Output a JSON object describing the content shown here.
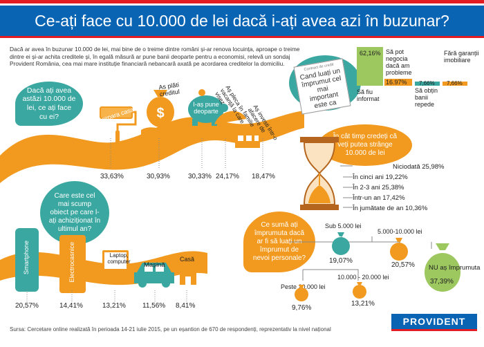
{
  "header": {
    "title": "Ce-ați face cu 10.000 de lei dacă i-ați avea azi în buzunar?"
  },
  "intro": "Dacă ar avea în buzunar 10.000 de lei, mai bine de o treime dintre români și-ar renova locuința, aproape o treime dintre ei și-ar achita creditele și, în egală măsură ar pune banii deoparte pentru a economisi, relevă un sondaj Provident România, cea mai mare instituție financiară nebancară axată pe acordarea creditelor la domiciliu.",
  "section1": {
    "question": "Dacă ați avea astăzi 10.000 de lei, ce ați face cu ei?",
    "options": [
      {
        "label": "Aș repara casa",
        "value": "33,63%"
      },
      {
        "label": "As plăti creditul",
        "value": "30,93%"
      },
      {
        "label": "I-aș pune deoparte",
        "value": "30,33%"
      },
      {
        "label": "Aș pleca în vacanță la care visez",
        "value": "24,17%"
      },
      {
        "label": "Aș investi într-o afacere de familie",
        "value": "18,47%"
      }
    ]
  },
  "section2": {
    "paper_header": "Contract de credit",
    "question": "Cand luați un împrumut cel mai important este ca",
    "bars": [
      {
        "label": "Să fiu informat",
        "value": "62,16%",
        "pct": 62.16,
        "color": "#3aa7a0"
      },
      {
        "label": "Să pot negocia dacă am probleme",
        "value": "16.97%",
        "pct": 16.97,
        "color": "#f29a1f"
      },
      {
        "label": "Să obțin banii repede",
        "value": "7,66%",
        "pct": 7.66,
        "color": "#3aa7a0"
      },
      {
        "label": "Fără garanții imobiliare",
        "value": "7,66%",
        "pct": 7.66,
        "color": "#f29a1f"
      }
    ]
  },
  "section3": {
    "question": "În cât timp credeți că veți putea strânge 10.000 de lei",
    "items": [
      {
        "label": "Niciodată 25,98%"
      },
      {
        "label": "În cinci ani 19,22%"
      },
      {
        "label": "În 2-3 ani 25,38%"
      },
      {
        "label": "Într-un an 17,42%"
      },
      {
        "label": "În jumătate de an 10,36%"
      }
    ]
  },
  "section4": {
    "question": "Care este cel mai scump obiect pe care l-ați achiziționat în ultimul an?",
    "items": [
      {
        "label": "Smartphone",
        "value": "20,57%"
      },
      {
        "label": "Electrocasnice",
        "value": "14,41%"
      },
      {
        "label": "Laptop, computer",
        "value": "13,21%"
      },
      {
        "label": "Mașină",
        "value": "11,56%"
      },
      {
        "label": "Casă",
        "value": "8,41%"
      }
    ]
  },
  "section5": {
    "question": "Ce sumă ați împrumuta dacă ar fi să luați un împrumut de nevoi personale?",
    "items": [
      {
        "label": "Sub 5.000 lei",
        "value": "19,07%"
      },
      {
        "label": "5.000-10.000 lei",
        "value": "20,57%"
      },
      {
        "label": "NU aș împrumuta",
        "value": "37,39%"
      },
      {
        "label": "Peste 20.000 lei",
        "value": "9,76%"
      },
      {
        "label": "10.000 - 20.000 lei",
        "value": "13,21%"
      }
    ]
  },
  "footer": {
    "source": "Sursa: Cercetare online realizată în perioada 14-21 iulie 2015, pe un eșantion de 670 de respondenți, reprezentativ la nivel național",
    "logo": "PROVIDENT"
  }
}
